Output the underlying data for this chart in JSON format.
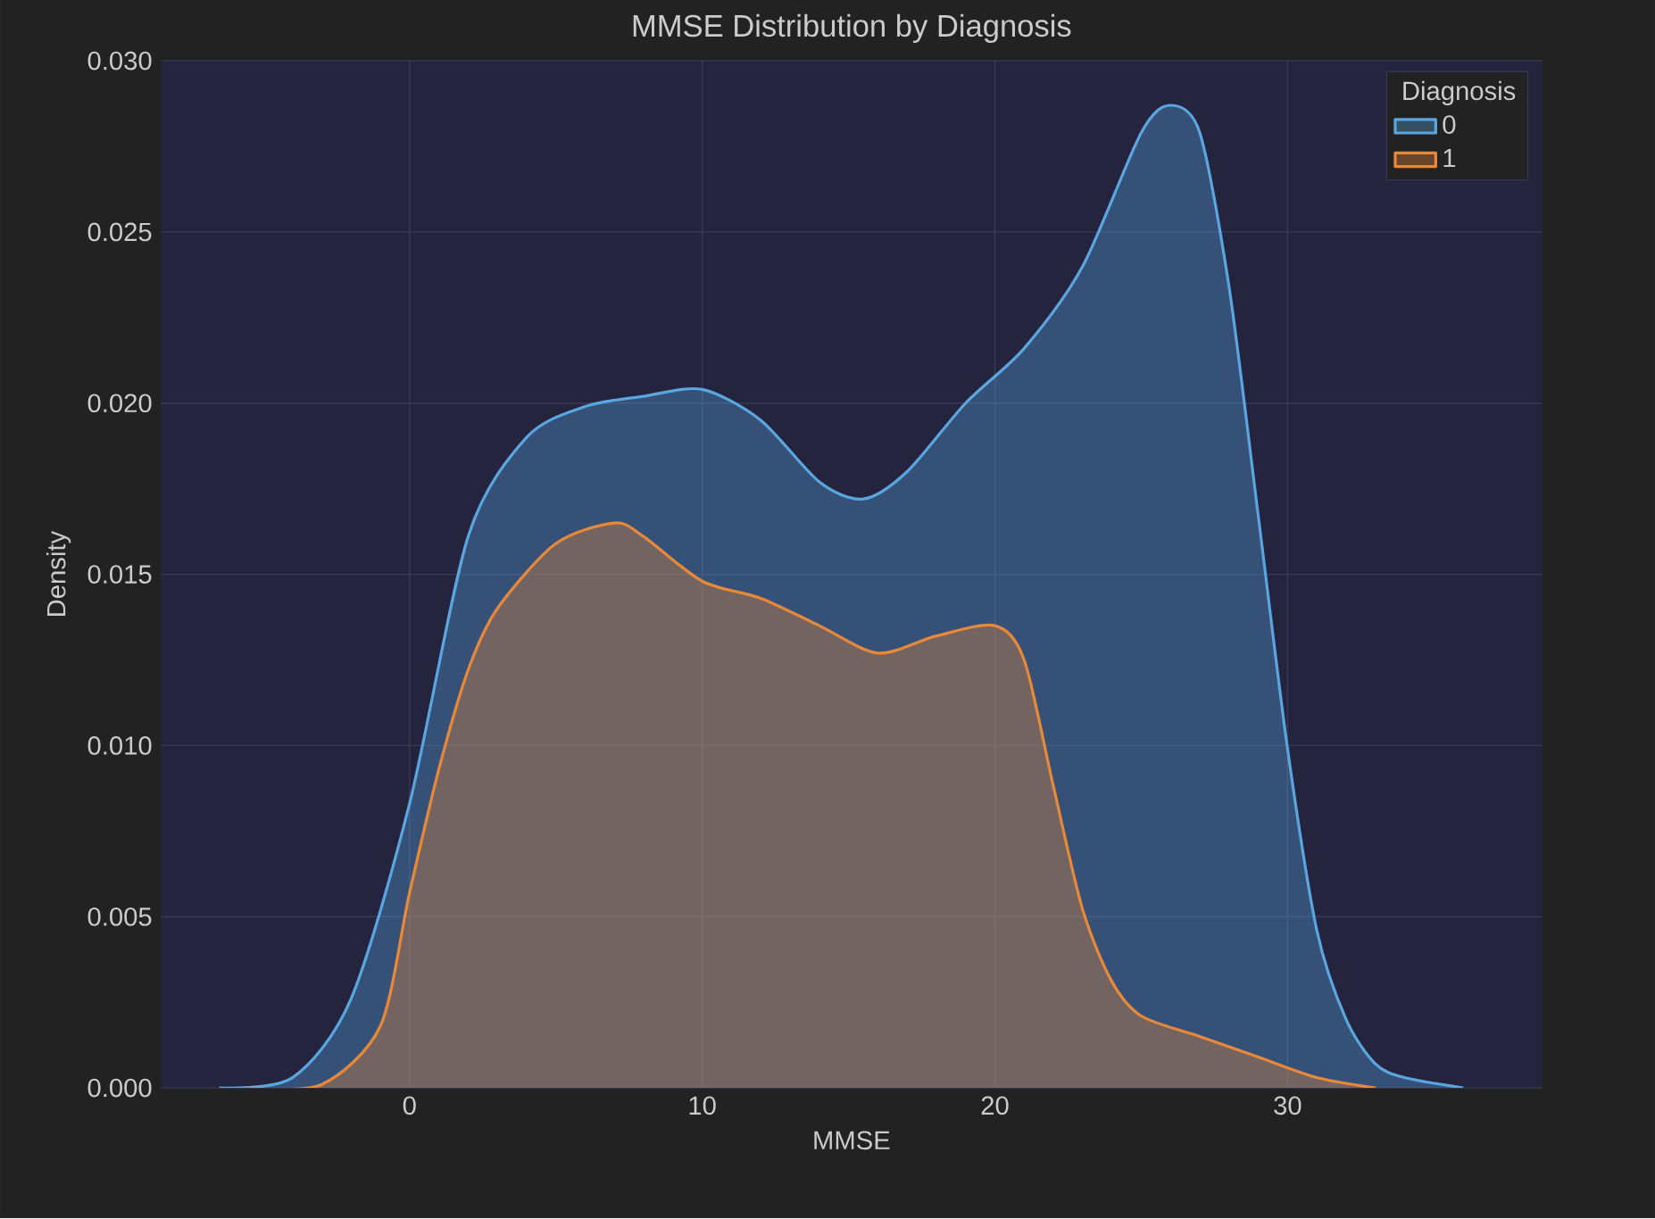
{
  "chart_data": {
    "type": "area",
    "title": "MMSE Distribution by Diagnosis",
    "xlabel": "MMSE",
    "ylabel": "Density",
    "legend_title": "Diagnosis",
    "xlim": [
      -8.5,
      38.7
    ],
    "ylim": [
      0,
      0.03
    ],
    "xticks": [
      0,
      10,
      20,
      30
    ],
    "yticks": [
      {
        "value": 0,
        "label": "0.000"
      },
      {
        "value": 0.005,
        "label": "0.005"
      },
      {
        "value": 0.01,
        "label": "0.010"
      },
      {
        "value": 0.015,
        "label": "0.015"
      },
      {
        "value": 0.02,
        "label": "0.020"
      },
      {
        "value": 0.025,
        "label": "0.025"
      },
      {
        "value": 0.03,
        "label": "0.030"
      }
    ],
    "grid": true,
    "legend": "top right",
    "series": [
      {
        "name": "0",
        "color": "#5aa6e0",
        "x": [
          -6.5,
          -4,
          -2,
          0,
          2,
          4,
          6,
          8,
          10,
          12,
          14,
          15.5,
          17,
          19,
          21,
          23,
          25,
          26,
          27,
          28,
          29,
          30,
          31,
          32,
          33,
          34,
          36
        ],
        "values": [
          0,
          0.0003,
          0.0026,
          0.0083,
          0.0161,
          0.019,
          0.0199,
          0.0202,
          0.0204,
          0.0195,
          0.0177,
          0.0172,
          0.018,
          0.02,
          0.0216,
          0.024,
          0.0279,
          0.0287,
          0.0279,
          0.0234,
          0.0167,
          0.0099,
          0.0046,
          0.002,
          0.0007,
          0.0003,
          0
        ]
      },
      {
        "name": "1",
        "color": "#e8893a",
        "x": [
          -5.5,
          -3,
          -1,
          0,
          1,
          2,
          3,
          5,
          7,
          8,
          10,
          12,
          14,
          16,
          18,
          20,
          21,
          22,
          23,
          24,
          25,
          27,
          29,
          31,
          33
        ],
        "values": [
          0,
          0.0001,
          0.0018,
          0.0057,
          0.0093,
          0.0122,
          0.014,
          0.0159,
          0.0165,
          0.0161,
          0.0148,
          0.0143,
          0.0135,
          0.0127,
          0.0132,
          0.0135,
          0.0125,
          0.0088,
          0.0052,
          0.0031,
          0.0021,
          0.0015,
          0.0009,
          0.0003,
          0
        ]
      }
    ]
  }
}
